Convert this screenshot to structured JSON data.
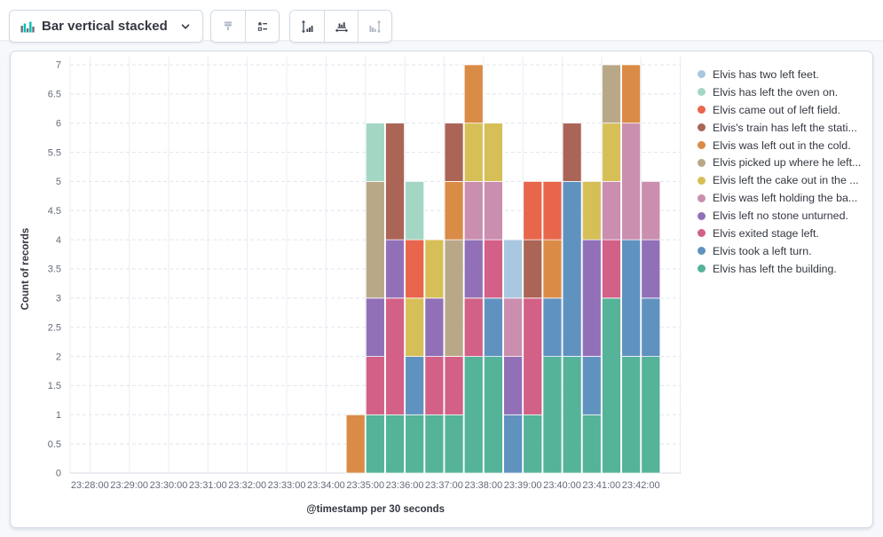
{
  "toolbar": {
    "chart_switcher": {
      "label": "Bar vertical stacked",
      "icon": "bar-chart-icon",
      "caret": "chevron-down-icon"
    },
    "buttons": [
      {
        "name": "visual-options-button",
        "icon": "brush-icon",
        "enabled": false
      },
      {
        "name": "legend-settings-button",
        "icon": "legend-list-icon",
        "enabled": true
      },
      {
        "name": "left-axis-button",
        "icon": "left-axis-icon",
        "enabled": true
      },
      {
        "name": "bottom-axis-button",
        "icon": "bottom-axis-icon",
        "enabled": true
      },
      {
        "name": "right-axis-button",
        "icon": "right-axis-icon",
        "enabled": false
      }
    ],
    "accent_colors": {
      "icon_teal": "#00BFB3",
      "icon_gray": "#69707D"
    }
  },
  "chart_data": {
    "type": "bar",
    "stacked": true,
    "orientation": "vertical",
    "ylabel": "Count of records",
    "xlabel": "@timestamp per 30 seconds",
    "ylim": [
      0,
      7
    ],
    "y_tick_step": 0.5,
    "grid": {
      "horizontal": "dashed",
      "vertical": "solid"
    },
    "x_axis_start": "23:28:00",
    "x_axis_end": "23:43:00",
    "x_tick_labels": [
      "23:28:00",
      "23:29:00",
      "23:30:00",
      "23:31:00",
      "23:32:00",
      "23:33:00",
      "23:34:00",
      "23:35:00",
      "23:36:00",
      "23:37:00",
      "23:38:00",
      "23:39:00",
      "23:40:00",
      "23:41:00",
      "23:42:00"
    ],
    "bar_interval_seconds": 30,
    "bar_times": [
      "23:34:30",
      "23:35:00",
      "23:35:30",
      "23:36:00",
      "23:36:30",
      "23:37:00",
      "23:37:30",
      "23:38:00",
      "23:38:30",
      "23:39:00",
      "23:39:30",
      "23:40:00",
      "23:40:30",
      "23:41:00",
      "23:41:30",
      "23:42:00"
    ],
    "series": [
      {
        "name": "Elvis has left the building.",
        "color": "#54B399",
        "values": [
          0,
          1,
          1,
          1,
          1,
          1,
          2,
          2,
          0,
          1,
          2,
          2,
          1,
          3,
          2,
          2
        ]
      },
      {
        "name": "Elvis took a left turn.",
        "color": "#6092C0",
        "values": [
          0,
          0,
          0,
          1,
          0,
          0,
          0,
          1,
          1,
          0,
          1,
          3,
          1,
          0,
          2,
          1
        ]
      },
      {
        "name": "Elvis exited stage left.",
        "color": "#D36086",
        "values": [
          0,
          1,
          2,
          0,
          1,
          1,
          1,
          1,
          0,
          2,
          0,
          0,
          0,
          1,
          0,
          0
        ]
      },
      {
        "name": "Elvis left no stone unturned.",
        "color": "#9170B8",
        "values": [
          0,
          1,
          1,
          0,
          1,
          0,
          1,
          0,
          1,
          0,
          0,
          0,
          2,
          0,
          0,
          1
        ]
      },
      {
        "name": "Elvis was left holding the ba...",
        "color": "#CA8EAE",
        "values": [
          0,
          0,
          0,
          0,
          0,
          0,
          1,
          1,
          1,
          0,
          0,
          0,
          0,
          1,
          2,
          1
        ]
      },
      {
        "name": "Elvis left the cake out in the ...",
        "color": "#D6BF57",
        "values": [
          0,
          0,
          0,
          1,
          1,
          0,
          1,
          1,
          0,
          0,
          0,
          0,
          1,
          1,
          0,
          0
        ]
      },
      {
        "name": "Elvis picked up where he left...",
        "color": "#B9A888",
        "values": [
          0,
          2,
          0,
          0,
          0,
          2,
          0,
          0,
          0,
          0,
          0,
          0,
          0,
          1,
          0,
          0
        ]
      },
      {
        "name": "Elvis was left out in the cold.",
        "color": "#DA8B45",
        "values": [
          1,
          0,
          0,
          0,
          0,
          1,
          1,
          0,
          0,
          0,
          1,
          0,
          0,
          0,
          1,
          0
        ]
      },
      {
        "name": "Elvis's train has left the stati...",
        "color": "#AA6556",
        "values": [
          0,
          0,
          2,
          0,
          0,
          1,
          0,
          0,
          0,
          1,
          0,
          1,
          0,
          0,
          0,
          0
        ]
      },
      {
        "name": "Elvis came out of left field.",
        "color": "#E7664C",
        "values": [
          0,
          0,
          0,
          1,
          0,
          0,
          0,
          0,
          0,
          1,
          1,
          0,
          0,
          0,
          0,
          0
        ]
      },
      {
        "name": "Elvis has left the oven on.",
        "color": "#A3D7C3",
        "values": [
          0,
          1,
          0,
          1,
          0,
          0,
          0,
          0,
          0,
          0,
          0,
          0,
          0,
          0,
          0,
          0
        ]
      },
      {
        "name": "Elvis has two left feet.",
        "color": "#A9C7E0",
        "values": [
          0,
          0,
          0,
          0,
          0,
          0,
          0,
          0,
          1,
          0,
          0,
          0,
          0,
          0,
          0,
          0
        ]
      }
    ],
    "legend": [
      {
        "label": "Elvis has two left feet.",
        "color": "#A9C7E0"
      },
      {
        "label": "Elvis has left the oven on.",
        "color": "#A3D7C3"
      },
      {
        "label": "Elvis came out of left field.",
        "color": "#E7664C"
      },
      {
        "label": "Elvis's train has left the stati...",
        "color": "#AA6556"
      },
      {
        "label": "Elvis was left out in the cold.",
        "color": "#DA8B45"
      },
      {
        "label": "Elvis picked up where he left...",
        "color": "#B9A888"
      },
      {
        "label": "Elvis left the cake out in the ...",
        "color": "#D6BF57"
      },
      {
        "label": "Elvis was left holding the ba...",
        "color": "#CA8EAE"
      },
      {
        "label": "Elvis left no stone unturned.",
        "color": "#9170B8"
      },
      {
        "label": "Elvis exited stage left.",
        "color": "#D36086"
      },
      {
        "label": "Elvis took a left turn.",
        "color": "#6092C0"
      },
      {
        "label": "Elvis has left the building.",
        "color": "#54B399"
      }
    ],
    "legend_position": "right"
  }
}
